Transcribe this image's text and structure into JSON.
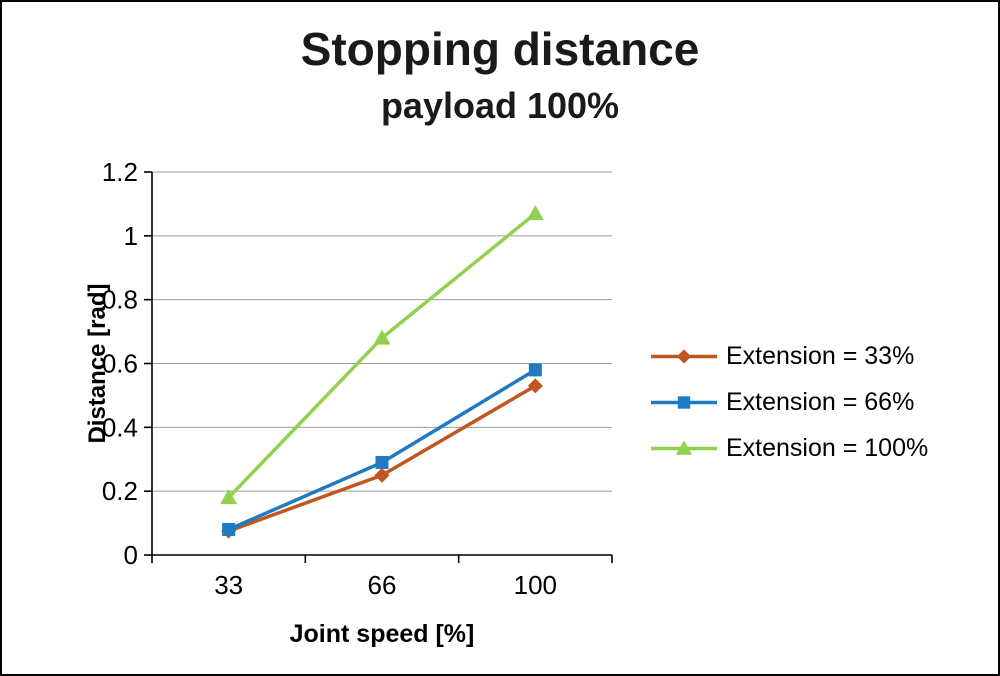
{
  "chart_data": {
    "type": "line",
    "title": "Stopping distance",
    "subtitle": "payload 100%",
    "categories": [
      "33",
      "66",
      "100"
    ],
    "series": [
      {
        "name": "Extension = 33%",
        "marker": "diamond",
        "color": "#C0571F",
        "values": [
          0.075,
          0.25,
          0.53
        ]
      },
      {
        "name": "Extension = 66%",
        "marker": "square",
        "color": "#1F7AC4",
        "values": [
          0.08,
          0.29,
          0.58
        ]
      },
      {
        "name": "Extension = 100%",
        "marker": "triangle",
        "color": "#92D050",
        "values": [
          0.18,
          0.68,
          1.07
        ]
      }
    ],
    "xlabel": "Joint speed [%]",
    "ylabel": "Distance [rad]",
    "ylim": [
      0,
      1.2
    ],
    "y_ticks": [
      0,
      0.2,
      0.4,
      0.6,
      0.8,
      1,
      1.2
    ],
    "y_tick_labels": [
      "0",
      "0.2",
      "0.4",
      "0.6",
      "0.8",
      "1",
      "1.2"
    ],
    "grid": true,
    "legend_position": "right",
    "grid_color": "#9D9D9D",
    "axis_color": "#000000",
    "text_color": "#000000"
  }
}
